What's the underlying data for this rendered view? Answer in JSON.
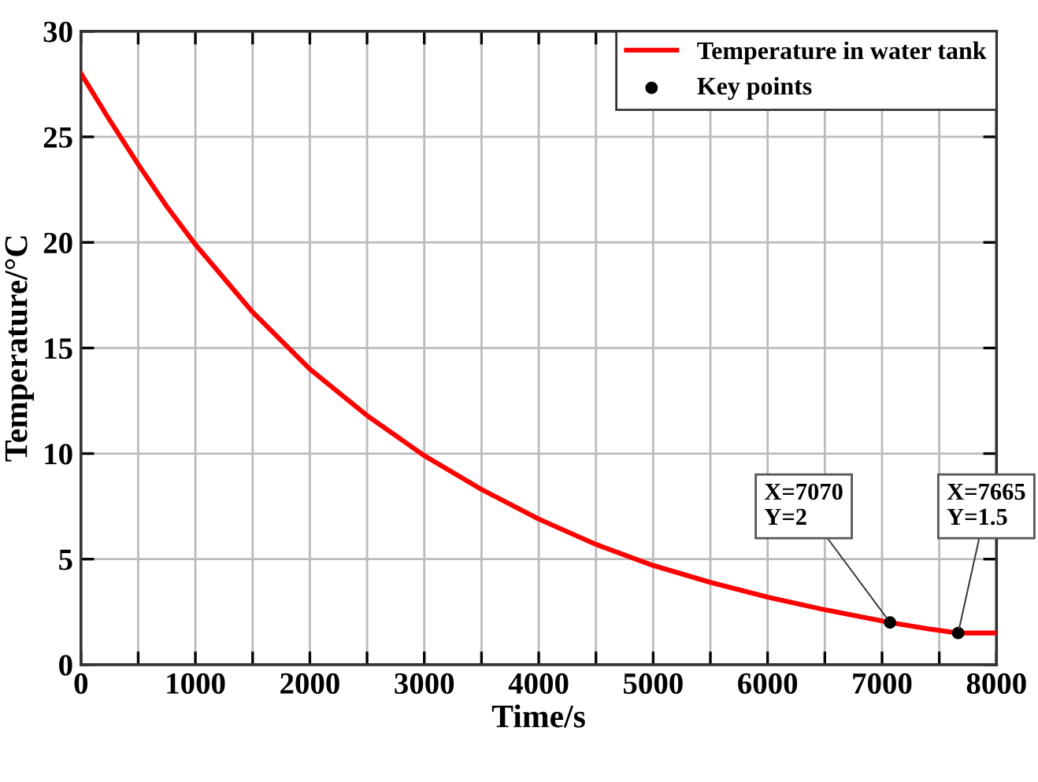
{
  "chart_data": {
    "type": "line",
    "xlabel": "Time/s",
    "ylabel": "Temperature/°C",
    "series": [
      {
        "name": "Temperature in water tank",
        "color": "#ff0000",
        "x": [
          0,
          250,
          500,
          750,
          1000,
          1500,
          2000,
          2500,
          3000,
          3500,
          4000,
          4500,
          5000,
          5500,
          6000,
          6500,
          7070,
          7400,
          7665,
          8000
        ],
        "values": [
          28,
          25.8,
          23.7,
          21.7,
          19.9,
          16.7,
          14.0,
          11.8,
          9.9,
          8.3,
          6.9,
          5.7,
          4.7,
          3.9,
          3.2,
          2.6,
          2.0,
          1.7,
          1.5,
          1.5
        ]
      },
      {
        "name": "Key points",
        "type": "scatter",
        "color": "#000000",
        "marker": "circle",
        "x": [
          7070,
          7665
        ],
        "values": [
          2,
          1.5
        ]
      }
    ],
    "annotations": [
      {
        "text": "X=7070\nY=2",
        "x": 7070,
        "y": 2
      },
      {
        "text": "X=7665\nY=1.5",
        "x": 7665,
        "y": 1.5
      }
    ],
    "xlim": [
      0,
      8000
    ],
    "ylim": [
      0,
      30
    ],
    "xticks": [
      0,
      {
        "value": 500,
        "label": null
      },
      1000,
      {
        "value": 1500,
        "label": null
      },
      2000,
      {
        "value": 2500,
        "label": null
      },
      3000,
      {
        "value": 3500,
        "label": null
      },
      4000,
      {
        "value": 4500,
        "label": null
      },
      5000,
      {
        "value": 5500,
        "label": null
      },
      6000,
      {
        "value": 6500,
        "label": null
      },
      7000,
      {
        "value": 7500,
        "label": null
      },
      8000
    ],
    "yticks": [
      0,
      5,
      10,
      15,
      20,
      25,
      30
    ],
    "grid": true,
    "legend": "top right"
  }
}
